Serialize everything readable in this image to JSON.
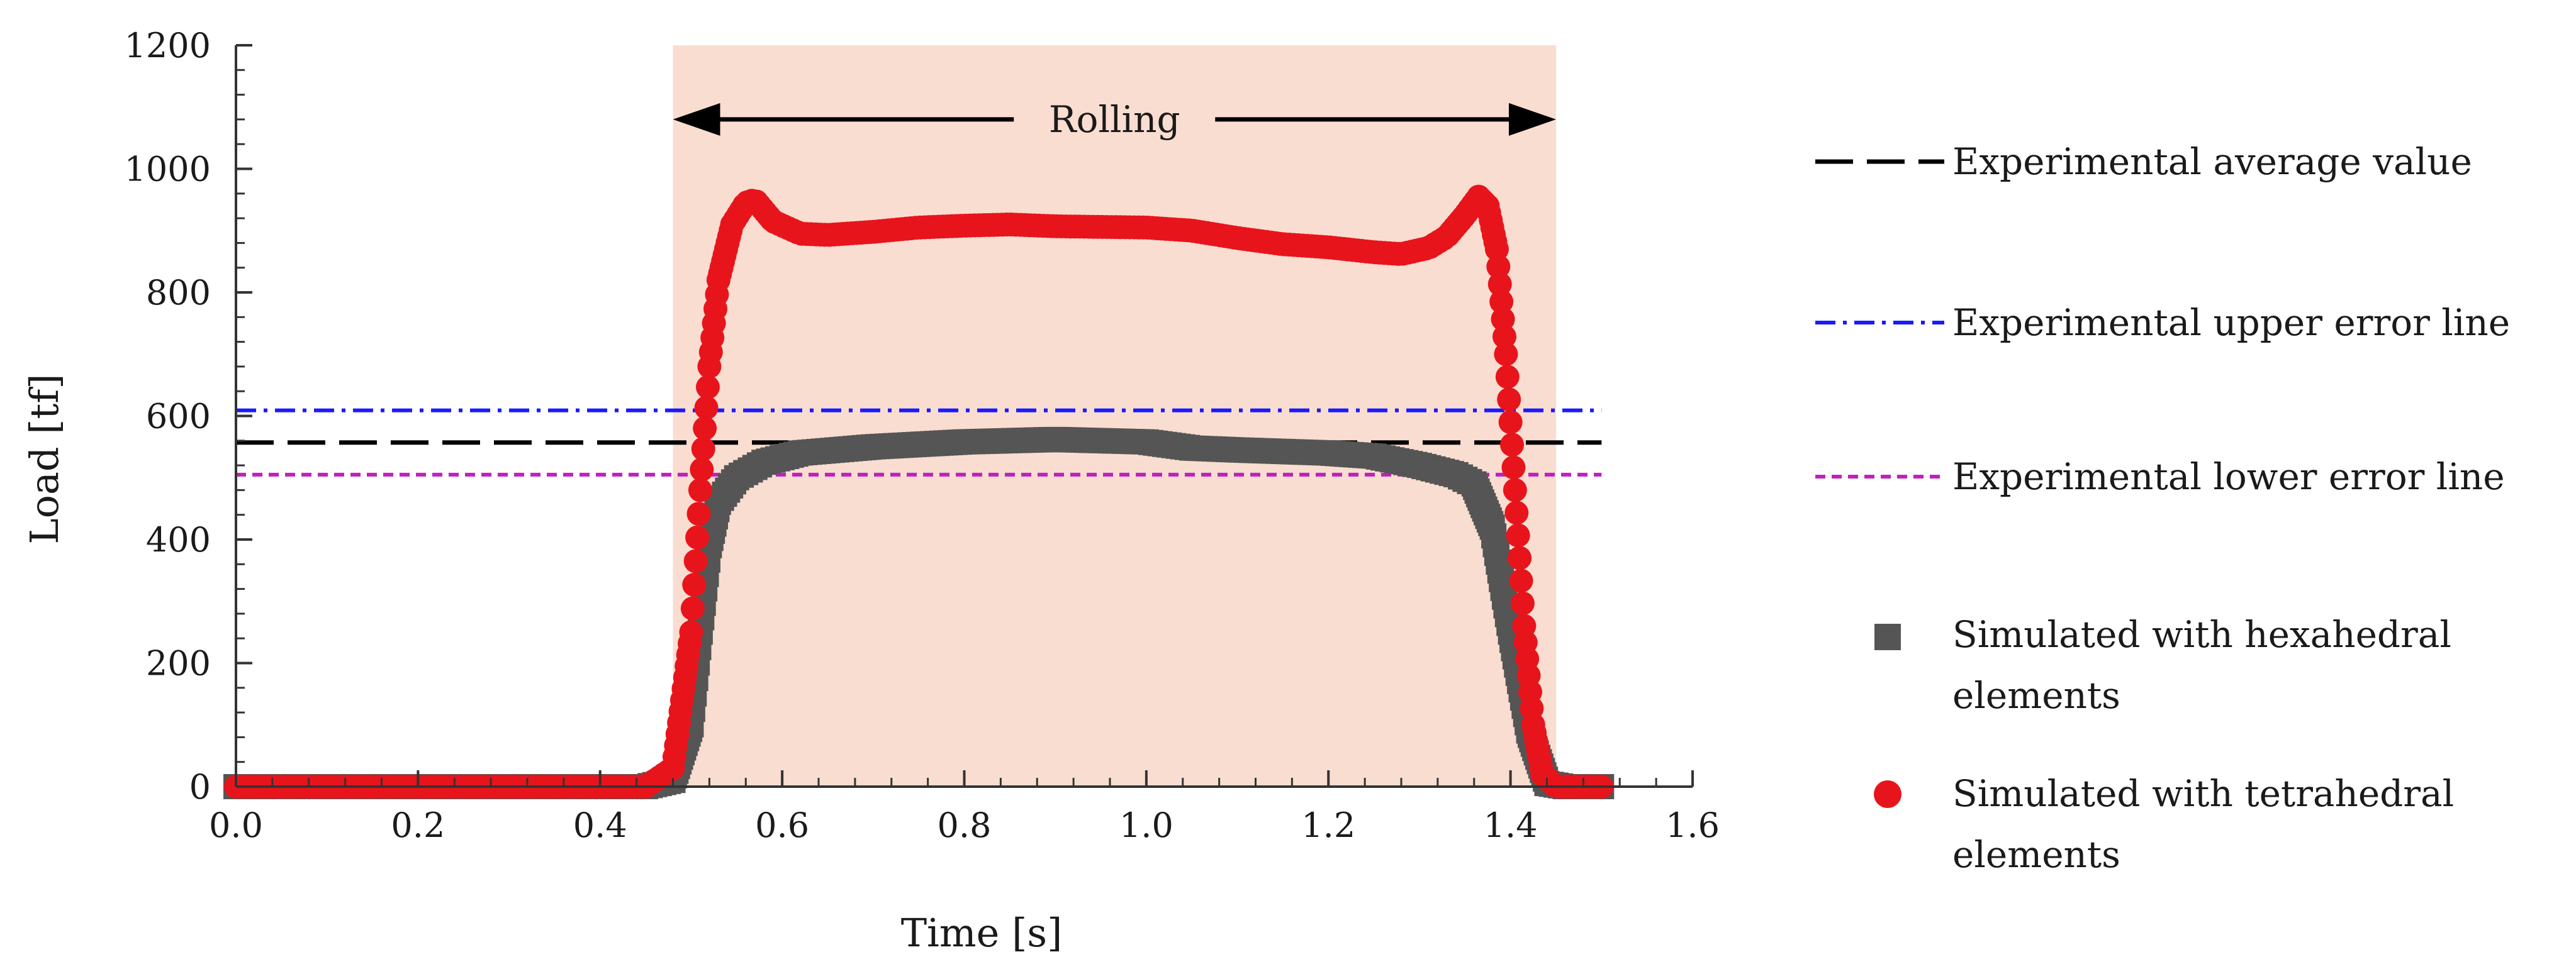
{
  "chart_data": {
    "type": "line",
    "title": "",
    "xlabel": "Time [s]",
    "ylabel": "Load [tf]",
    "xlim": [
      0,
      1.6
    ],
    "ylim": [
      0,
      1200
    ],
    "x_ticks": [
      0.0,
      0.2,
      0.4,
      0.6,
      0.8,
      1.0,
      1.2,
      1.4,
      1.6
    ],
    "x_tick_labels": [
      "0.0",
      "0.2",
      "0.4",
      "0.6",
      "0.8",
      "1.0",
      "1.2",
      "1.4",
      "1.6"
    ],
    "y_ticks": [
      0,
      200,
      400,
      600,
      800,
      1000,
      1200
    ],
    "y_tick_labels": [
      "0",
      "200",
      "400",
      "600",
      "800",
      "1000",
      "1200"
    ],
    "grid": false,
    "legend_position": "right",
    "shaded_region": {
      "x_start": 0.48,
      "x_end": 1.45,
      "color": "#f9ddd0"
    },
    "annotation": {
      "text": "Rolling",
      "x_start": 0.48,
      "x_end": 1.45,
      "y": 1080
    },
    "reference_lines": [
      {
        "name": "Experimental average value",
        "y": 557,
        "color": "#000000",
        "style": "dashed"
      },
      {
        "name": "Experimental upper error line",
        "y": 609,
        "color": "#1a1aff",
        "style": "dashdot"
      },
      {
        "name": "Experimental lower error line",
        "y": 505,
        "color": "#c020c0",
        "style": "dotted"
      }
    ],
    "series": [
      {
        "name": "Simulated with hexahedral elements",
        "marker": "square",
        "color": "#555555",
        "points": [
          [
            0.0,
            0
          ],
          [
            0.3,
            0
          ],
          [
            0.45,
            0
          ],
          [
            0.48,
            10
          ],
          [
            0.5,
            100
          ],
          [
            0.51,
            250
          ],
          [
            0.52,
            390
          ],
          [
            0.53,
            460
          ],
          [
            0.55,
            500
          ],
          [
            0.58,
            525
          ],
          [
            0.62,
            540
          ],
          [
            0.7,
            550
          ],
          [
            0.8,
            558
          ],
          [
            0.9,
            562
          ],
          [
            1.0,
            558
          ],
          [
            1.05,
            548
          ],
          [
            1.1,
            545
          ],
          [
            1.2,
            540
          ],
          [
            1.25,
            535
          ],
          [
            1.3,
            520
          ],
          [
            1.34,
            505
          ],
          [
            1.36,
            490
          ],
          [
            1.38,
            420
          ],
          [
            1.4,
            250
          ],
          [
            1.42,
            90
          ],
          [
            1.44,
            5
          ],
          [
            1.46,
            0
          ],
          [
            1.5,
            0
          ]
        ]
      },
      {
        "name": "Simulated with tetrahedral elements",
        "marker": "circle",
        "color": "#e8141c",
        "points": [
          [
            0.0,
            0
          ],
          [
            0.3,
            0
          ],
          [
            0.45,
            0
          ],
          [
            0.48,
            30
          ],
          [
            0.5,
            250
          ],
          [
            0.51,
            480
          ],
          [
            0.52,
            680
          ],
          [
            0.53,
            820
          ],
          [
            0.545,
            910
          ],
          [
            0.56,
            945
          ],
          [
            0.57,
            950
          ],
          [
            0.59,
            915
          ],
          [
            0.62,
            895
          ],
          [
            0.65,
            893
          ],
          [
            0.7,
            898
          ],
          [
            0.75,
            905
          ],
          [
            0.8,
            908
          ],
          [
            0.85,
            910
          ],
          [
            0.9,
            907
          ],
          [
            1.0,
            905
          ],
          [
            1.05,
            900
          ],
          [
            1.1,
            888
          ],
          [
            1.15,
            878
          ],
          [
            1.2,
            873
          ],
          [
            1.25,
            865
          ],
          [
            1.28,
            862
          ],
          [
            1.31,
            872
          ],
          [
            1.33,
            890
          ],
          [
            1.35,
            925
          ],
          [
            1.365,
            955
          ],
          [
            1.375,
            940
          ],
          [
            1.385,
            870
          ],
          [
            1.395,
            700
          ],
          [
            1.405,
            480
          ],
          [
            1.415,
            260
          ],
          [
            1.425,
            100
          ],
          [
            1.435,
            20
          ],
          [
            1.45,
            0
          ],
          [
            1.5,
            0
          ]
        ]
      }
    ]
  },
  "legend": {
    "items": [
      {
        "label": "Experimental average value"
      },
      {
        "label": "Experimental upper error line"
      },
      {
        "label": "Experimental lower error line"
      },
      {
        "label_line1": "Simulated with hexahedral",
        "label_line2": "elements"
      },
      {
        "label_line1": "Simulated with tetrahedral",
        "label_line2": "elements"
      }
    ]
  }
}
